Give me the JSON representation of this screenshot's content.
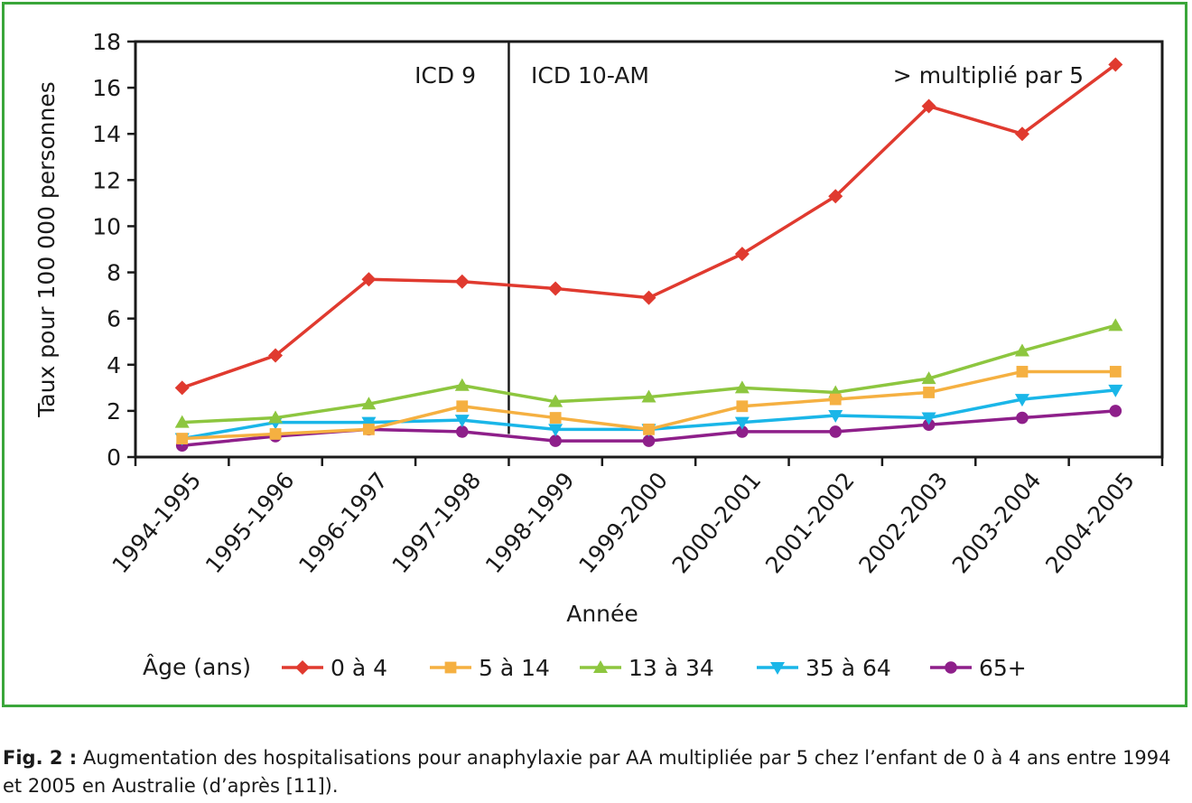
{
  "chart_data": {
    "type": "line",
    "xlabel": "Année",
    "ylabel": "Taux pour 100 000 personnes",
    "ylim": [
      0,
      18
    ],
    "yticks": [
      0,
      2,
      4,
      6,
      8,
      10,
      12,
      14,
      16,
      18
    ],
    "categories": [
      "1994-1995",
      "1995-1996",
      "1996-1997",
      "1997-1998",
      "1998-1999",
      "1999-2000",
      "2000-2001",
      "2001-2002",
      "2002-2003",
      "2003-2004",
      "2004-2005"
    ],
    "legend_title": "Âge (ans)",
    "legend_position": "bottom",
    "grid": false,
    "series": [
      {
        "name": "0 à 4",
        "color": "#e03a2f",
        "marker": "diamond",
        "values": [
          3.0,
          4.4,
          7.7,
          7.6,
          7.3,
          6.9,
          8.8,
          11.3,
          15.2,
          14.0,
          17.0
        ]
      },
      {
        "name": "5 à 14",
        "color": "#f5b041",
        "marker": "square",
        "values": [
          0.8,
          1.0,
          1.2,
          2.2,
          1.7,
          1.2,
          2.2,
          2.5,
          2.8,
          3.7,
          3.7
        ]
      },
      {
        "name": "13 à 34",
        "color": "#8dc63f",
        "marker": "triangle-up",
        "values": [
          1.5,
          1.7,
          2.3,
          3.1,
          2.4,
          2.6,
          3.0,
          2.8,
          3.4,
          4.6,
          5.7
        ]
      },
      {
        "name": "35 à 64",
        "color": "#1ab6e8",
        "marker": "triangle-down",
        "values": [
          0.8,
          1.5,
          1.5,
          1.6,
          1.2,
          1.2,
          1.5,
          1.8,
          1.7,
          2.5,
          2.9
        ]
      },
      {
        "name": "65+",
        "color": "#8e1f8a",
        "marker": "circle",
        "values": [
          0.5,
          0.9,
          1.2,
          1.1,
          0.7,
          0.7,
          1.1,
          1.1,
          1.4,
          1.7,
          2.0
        ]
      }
    ],
    "divider_after_category": "1997-1998",
    "annotations": {
      "left": "ICD 9",
      "right": "ICD 10-AM",
      "note": "> multiplié par 5"
    }
  },
  "caption": {
    "label": "Fig. 2 :",
    "text": " Augmentation des hospitalisations pour anaphylaxie par AA multipliée par 5 chez l’enfant de 0 à 4 ans entre 1994 et 2005 en Australie (d’après [11])."
  }
}
